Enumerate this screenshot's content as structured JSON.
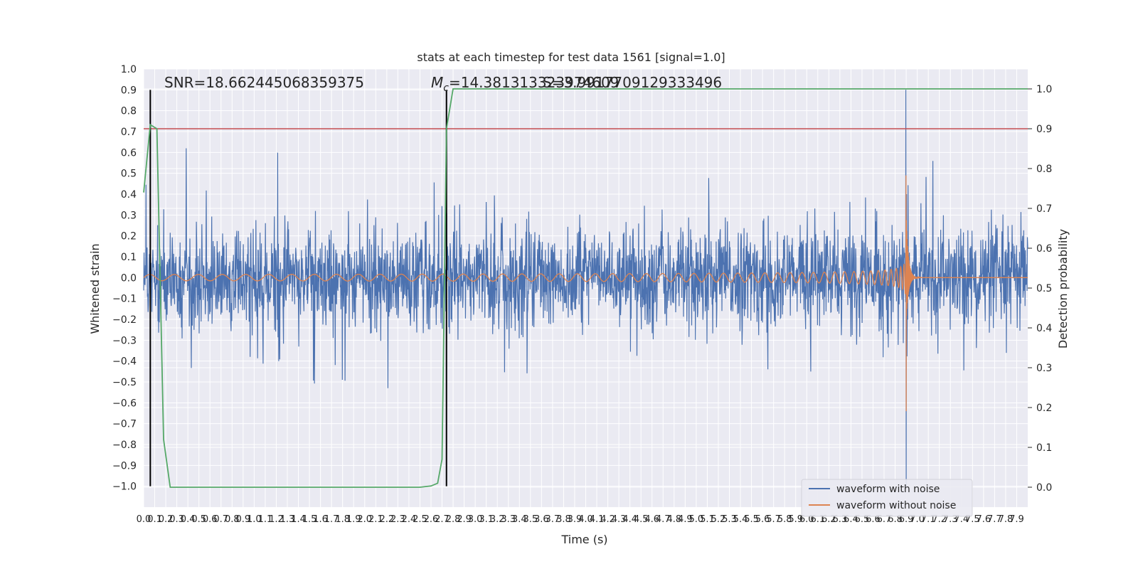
{
  "chart_data": {
    "type": "line",
    "title": "stats at each timestep for test data 1561 [signal=1.0]",
    "xlabel": "Time (s)",
    "ylabel": "Whitened strain",
    "y2label": "Detection probability",
    "xlim": [
      0.0,
      8.0
    ],
    "ylim": [
      -1.1,
      1.0
    ],
    "y2lim": [
      -0.05,
      1.05
    ],
    "grid": true,
    "yticks": [
      -1.0,
      -0.9,
      -0.8,
      -0.7,
      -0.6,
      -0.5,
      -0.4,
      -0.3,
      -0.2,
      -0.1,
      0.0,
      0.1,
      0.2,
      0.3,
      0.4,
      0.5,
      0.6,
      0.7,
      0.8,
      0.9,
      1.0
    ],
    "y2ticks": [
      0.0,
      0.1,
      0.2,
      0.3,
      0.4,
      0.5,
      0.6,
      0.7,
      0.8,
      0.9,
      1.0
    ],
    "xticks": [
      0.0,
      0.1,
      0.2,
      0.3,
      0.4,
      0.5,
      0.6,
      0.7,
      0.8,
      0.9,
      1.0,
      1.1,
      1.2,
      1.3,
      1.4,
      1.5,
      1.6,
      1.7,
      1.8,
      1.9,
      2.0,
      2.1,
      2.2,
      2.3,
      2.4,
      2.5,
      2.6,
      2.7,
      2.8,
      2.9,
      3.0,
      3.1,
      3.2,
      3.3,
      3.4,
      3.5,
      3.6,
      3.7,
      3.8,
      3.9,
      4.0,
      4.1,
      4.2,
      4.3,
      4.4,
      4.5,
      4.6,
      4.7,
      4.8,
      4.9,
      5.0,
      5.1,
      5.2,
      5.3,
      5.4,
      5.5,
      5.6,
      5.7,
      5.8,
      5.9,
      6.0,
      6.1,
      6.2,
      6.3,
      6.4,
      6.5,
      6.6,
      6.7,
      6.8,
      6.9,
      7.0,
      7.1,
      7.2,
      7.3,
      7.4,
      7.5,
      7.6,
      7.7,
      7.8,
      7.9
    ],
    "annotations": {
      "snr": "SNR=18.662445068359375",
      "mc_prefix": "M",
      "mc_sub": "c",
      "mc_value": "=14.381313323974609",
      "overlap": "S=3.9917709129333496"
    },
    "vlines_x": [
      0.06,
      2.74
    ],
    "threshold_prob": 0.9,
    "legend": {
      "placement": "bottom-right",
      "entries": [
        "waveform with noise",
        "waveform without noise"
      ]
    },
    "series": [
      {
        "name": "waveform with noise",
        "color": "#4c72b0",
        "envelope": {
          "typical_amplitude": 0.3,
          "max_spike": 0.9,
          "min_spike": -1.0,
          "spike_time": 6.9
        }
      },
      {
        "name": "waveform without noise",
        "color": "#dd8452",
        "chirp": {
          "start_amplitude": 0.015,
          "peak_amplitude_pos": 0.49,
          "peak_amplitude_neg": -0.64,
          "merger_time": 6.9
        }
      },
      {
        "name": "detection probability",
        "color": "#55a868",
        "axis": "right",
        "x": [
          0.0,
          0.06,
          0.12,
          0.18,
          0.24,
          0.5,
          1.0,
          1.5,
          2.0,
          2.4,
          2.5,
          2.6,
          2.66,
          2.7,
          2.74,
          2.8,
          3.0,
          4.0,
          5.0,
          6.0,
          7.0,
          8.0
        ],
        "y": [
          0.74,
          0.91,
          0.9,
          0.12,
          0.0,
          0.0,
          0.0,
          0.0,
          0.0,
          0.0,
          0.0,
          0.003,
          0.01,
          0.07,
          0.9,
          1.0,
          1.0,
          1.0,
          1.0,
          1.0,
          1.0,
          1.0
        ]
      }
    ],
    "colors": {
      "background": "#eaeaf2",
      "grid": "#ffffff",
      "threshold": "#c44e52",
      "vline": "#000000"
    }
  }
}
